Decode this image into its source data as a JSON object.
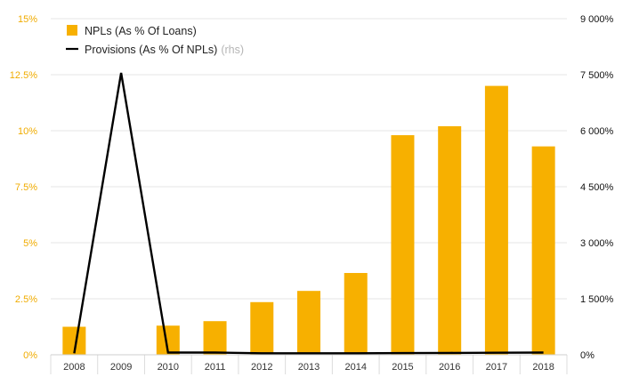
{
  "chart_data": {
    "type": "bar",
    "categories": [
      "2008",
      "2009",
      "2010",
      "2011",
      "2012",
      "2013",
      "2014",
      "2015",
      "2016",
      "2017",
      "2018"
    ],
    "series": [
      {
        "name": "NPLs (As % Of Loans)",
        "type": "bar",
        "axis": "left",
        "values": [
          1.25,
          0,
          1.3,
          1.5,
          2.35,
          2.85,
          3.65,
          9.8,
          10.2,
          12.0,
          9.3
        ]
      },
      {
        "name": "Provisions (As % Of NPLs)",
        "type": "line",
        "axis": "right",
        "values": [
          40,
          7550,
          60,
          60,
          40,
          40,
          40,
          45,
          50,
          55,
          60
        ]
      }
    ],
    "left_axis": {
      "ticks": [
        0,
        2.5,
        5,
        7.5,
        10,
        12.5,
        15
      ],
      "tick_labels": [
        "0%",
        "2.5%",
        "5%",
        "7.5%",
        "10%",
        "12.5%",
        "15%"
      ],
      "ylim": [
        0,
        15
      ]
    },
    "right_axis": {
      "ticks": [
        0,
        1500,
        3000,
        4500,
        6000,
        7500,
        9000
      ],
      "tick_labels": [
        "0%",
        "1 500%",
        "3 000%",
        "4 500%",
        "6 000%",
        "7 500%",
        "9 000%"
      ],
      "ylim": [
        0,
        9000
      ]
    },
    "legend": {
      "placement": "top-left",
      "items": [
        {
          "label": "NPLs (As % Of Loans)",
          "suffix": ""
        },
        {
          "label": "Provisions (As % Of NPLs)",
          "suffix": "(rhs)"
        }
      ]
    },
    "colors": {
      "bar": "#f7b000",
      "line": "#000000",
      "grid": "#e6e6e6",
      "left_ticks": "#f0ac00",
      "right_ticks": "#111111"
    },
    "grid": true
  }
}
